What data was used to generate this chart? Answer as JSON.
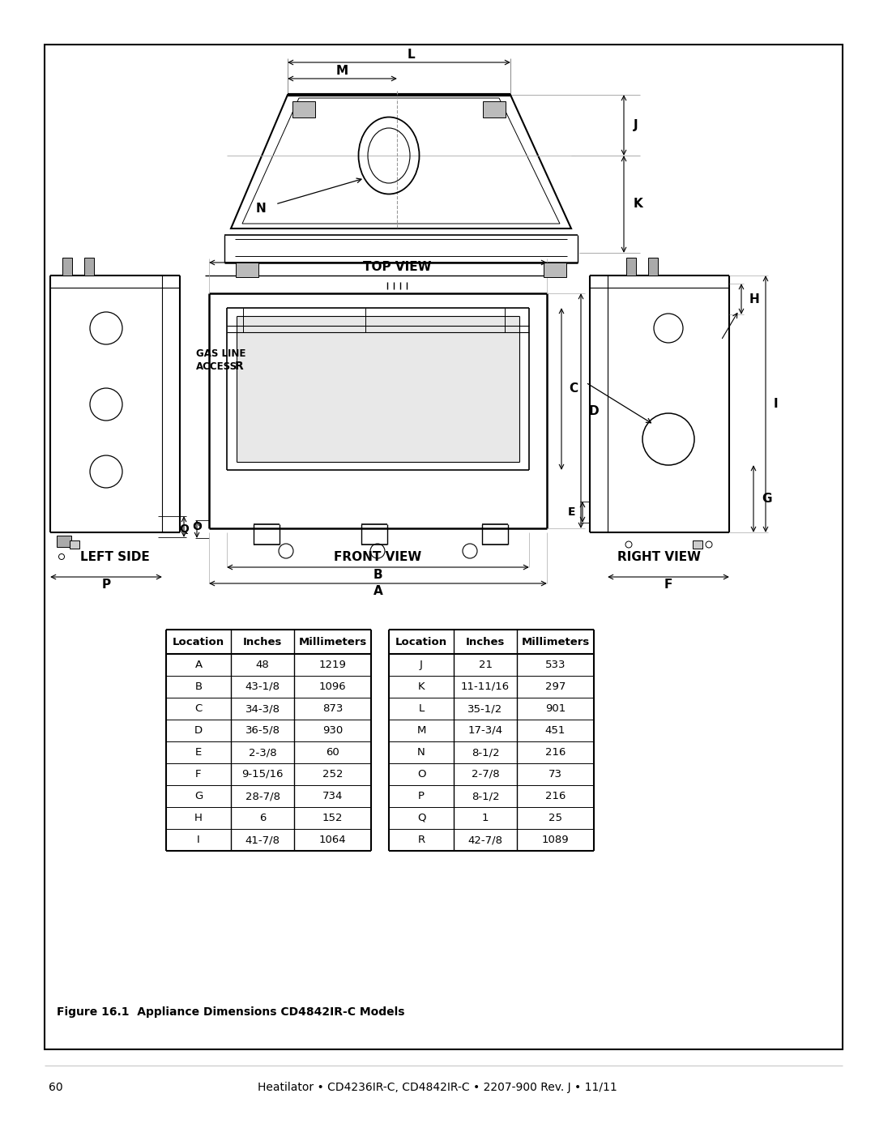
{
  "title_header": "Heatilator • CD4236IR-C, CD4842IR-C • 2207-900 Rev. J • 11/11",
  "page_number": "60",
  "figure_caption": "Figure 16.1  Appliance Dimensions CD4842IR-C Models",
  "table1": {
    "headers": [
      "Location",
      "Inches",
      "Millimeters"
    ],
    "rows": [
      [
        "A",
        "48",
        "1219"
      ],
      [
        "B",
        "43-1/8",
        "1096"
      ],
      [
        "C",
        "34-3/8",
        "873"
      ],
      [
        "D",
        "36-5/8",
        "930"
      ],
      [
        "E",
        "2-3/8",
        "60"
      ],
      [
        "F",
        "9-15/16",
        "252"
      ],
      [
        "G",
        "28-7/8",
        "734"
      ],
      [
        "H",
        "6",
        "152"
      ],
      [
        "I",
        "41-7/8",
        "1064"
      ]
    ]
  },
  "table2": {
    "headers": [
      "Location",
      "Inches",
      "Millimeters"
    ],
    "rows": [
      [
        "J",
        "21",
        "533"
      ],
      [
        "K",
        "11-11/16",
        "297"
      ],
      [
        "L",
        "35-1/2",
        "901"
      ],
      [
        "M",
        "17-3/4",
        "451"
      ],
      [
        "N",
        "8-1/2",
        "216"
      ],
      [
        "O",
        "2-7/8",
        "73"
      ],
      [
        "P",
        "8-1/2",
        "216"
      ],
      [
        "Q",
        "1",
        "25"
      ],
      [
        "R",
        "42-7/8",
        "1089"
      ]
    ]
  },
  "view_labels": {
    "top": "TOP VIEW",
    "left": "LEFT SIDE",
    "front": "FRONT VIEW",
    "right": "RIGHT VIEW"
  },
  "bg_color": "#ffffff"
}
